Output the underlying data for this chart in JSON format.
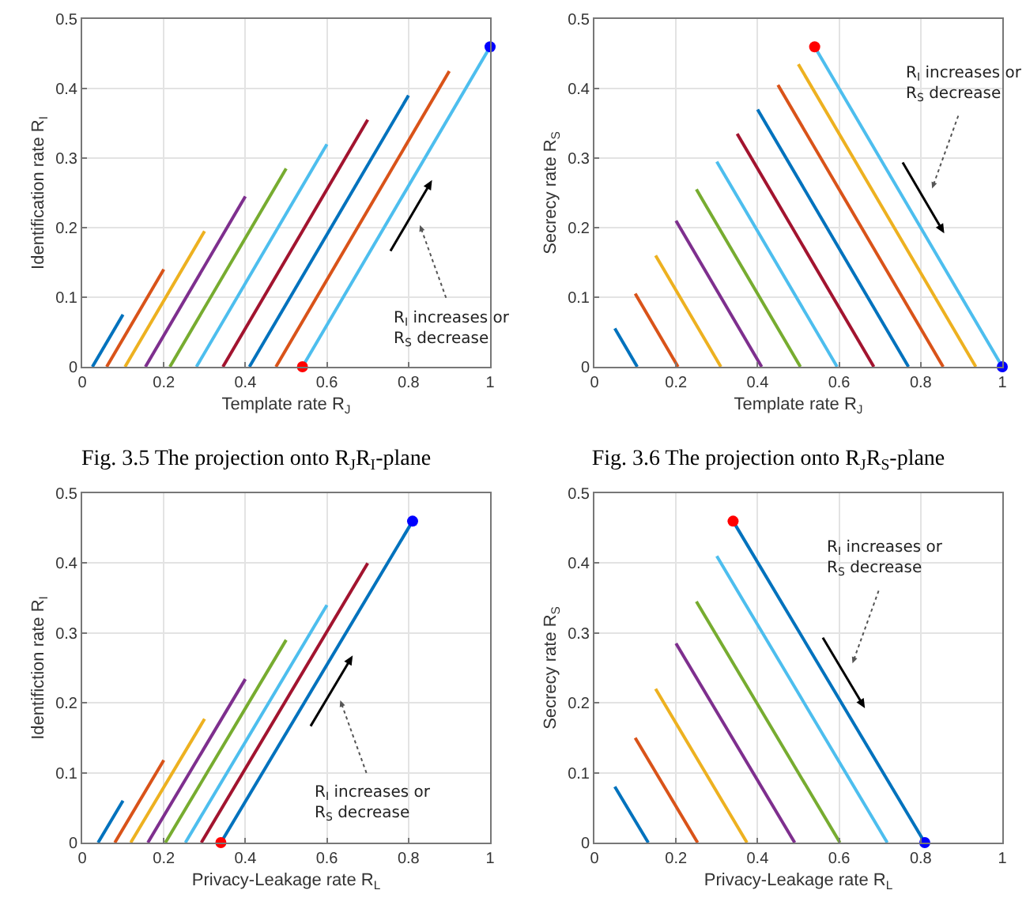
{
  "chart_data": [
    {
      "type": "line",
      "title": "Fig. 3.5 The projection onto R$_{J}$R$_{I}$-plane",
      "xlabel": "Template rate R$_{J}$",
      "ylabel": "Identification rate R$_{I}$",
      "xlim": [
        0,
        1
      ],
      "ylim": [
        0,
        0.5
      ],
      "xticks": [
        0,
        0.2,
        0.4,
        0.6,
        0.8,
        1
      ],
      "yticks": [
        0,
        0.1,
        0.2,
        0.3,
        0.4,
        0.5
      ],
      "grid": true,
      "legend": false,
      "annotations": [
        "R$_{I}$ increases or\nR$_{S}$ decrease"
      ],
      "series": [
        {
          "color": "#0072bd",
          "x": [
            0.025,
            0.1
          ],
          "values": [
            0,
            0.075
          ]
        },
        {
          "color": "#d95319",
          "x": [
            0.06,
            0.2
          ],
          "values": [
            0,
            0.14
          ]
        },
        {
          "color": "#edb120",
          "x": [
            0.105,
            0.3
          ],
          "values": [
            0,
            0.195
          ]
        },
        {
          "color": "#7e2f8e",
          "x": [
            0.155,
            0.4
          ],
          "values": [
            0,
            0.245
          ]
        },
        {
          "color": "#77ac30",
          "x": [
            0.215,
            0.5
          ],
          "values": [
            0,
            0.285
          ]
        },
        {
          "color": "#4dbeee",
          "x": [
            0.28,
            0.6
          ],
          "values": [
            0,
            0.32
          ]
        },
        {
          "color": "#a2142f",
          "x": [
            0.345,
            0.7
          ],
          "values": [
            0,
            0.355
          ]
        },
        {
          "color": "#0072bd",
          "x": [
            0.41,
            0.8
          ],
          "values": [
            0,
            0.39
          ]
        },
        {
          "color": "#d95319",
          "x": [
            0.475,
            0.9
          ],
          "values": [
            0,
            0.425
          ]
        },
        {
          "color": "#4dbeee",
          "x": [
            0.54,
            1
          ],
          "values": [
            0,
            0.46
          ]
        },
        {
          "type": "scatter",
          "color": "#ff0000",
          "x": [
            0.54
          ],
          "values": [
            0
          ]
        },
        {
          "type": "scatter",
          "color": "#0000ff",
          "x": [
            1
          ],
          "values": [
            0.46
          ]
        }
      ]
    },
    {
      "type": "line",
      "title": "Fig. 3.6 The projection onto R$_{J}$R$_{S}$-plane",
      "xlabel": "Template rate R$_{J}$",
      "ylabel": "Secrecy rate R$_{S}$",
      "xlim": [
        0,
        1
      ],
      "ylim": [
        0,
        0.5
      ],
      "xticks": [
        0,
        0.2,
        0.4,
        0.6,
        0.8,
        1
      ],
      "yticks": [
        0,
        0.1,
        0.2,
        0.3,
        0.4,
        0.5
      ],
      "grid": true,
      "legend": false,
      "annotations": [
        "R$_{I}$ increases or\nR$_{S}$ decrease"
      ],
      "series": [
        {
          "color": "#0072bd",
          "x": [
            0.05,
            0.105
          ],
          "values": [
            0.055,
            0
          ]
        },
        {
          "color": "#d95319",
          "x": [
            0.1,
            0.205
          ],
          "values": [
            0.105,
            0
          ]
        },
        {
          "color": "#edb120",
          "x": [
            0.15,
            0.31
          ],
          "values": [
            0.16,
            0
          ]
        },
        {
          "color": "#7e2f8e",
          "x": [
            0.2,
            0.41
          ],
          "values": [
            0.21,
            0
          ]
        },
        {
          "color": "#77ac30",
          "x": [
            0.25,
            0.505
          ],
          "values": [
            0.255,
            0
          ]
        },
        {
          "color": "#4dbeee",
          "x": [
            0.3,
            0.595
          ],
          "values": [
            0.295,
            0
          ]
        },
        {
          "color": "#a2142f",
          "x": [
            0.35,
            0.685
          ],
          "values": [
            0.335,
            0
          ]
        },
        {
          "color": "#0072bd",
          "x": [
            0.4,
            0.77
          ],
          "values": [
            0.37,
            0
          ]
        },
        {
          "color": "#d95319",
          "x": [
            0.45,
            0.855
          ],
          "values": [
            0.405,
            0
          ]
        },
        {
          "color": "#edb120",
          "x": [
            0.5,
            0.935
          ],
          "values": [
            0.435,
            0
          ]
        },
        {
          "color": "#4dbeee",
          "x": [
            0.54,
            1
          ],
          "values": [
            0.46,
            0
          ]
        },
        {
          "type": "scatter",
          "color": "#ff0000",
          "x": [
            0.54
          ],
          "values": [
            0.46
          ]
        },
        {
          "type": "scatter",
          "color": "#0000ff",
          "x": [
            1
          ],
          "values": [
            0
          ]
        }
      ]
    },
    {
      "type": "line",
      "xlabel": "Privacy-Leakage rate R$_{L}$",
      "ylabel": "Identifiction rate R$_{I}$",
      "xlim": [
        0,
        1
      ],
      "ylim": [
        0,
        0.5
      ],
      "xticks": [
        0,
        0.2,
        0.4,
        0.6,
        0.8,
        1
      ],
      "yticks": [
        0,
        0.1,
        0.2,
        0.3,
        0.4,
        0.5
      ],
      "grid": true,
      "legend": false,
      "annotations": [
        "R$_{I}$ increases or\nR$_{S}$ decrease"
      ],
      "series": [
        {
          "color": "#0072bd",
          "x": [
            0.039,
            0.1
          ],
          "values": [
            0,
            0.06
          ]
        },
        {
          "color": "#d95319",
          "x": [
            0.08,
            0.2
          ],
          "values": [
            0,
            0.118
          ]
        },
        {
          "color": "#edb120",
          "x": [
            0.119,
            0.3
          ],
          "values": [
            0,
            0.177
          ]
        },
        {
          "color": "#7e2f8e",
          "x": [
            0.161,
            0.4
          ],
          "values": [
            0,
            0.234
          ]
        },
        {
          "color": "#77ac30",
          "x": [
            0.204,
            0.5
          ],
          "values": [
            0,
            0.29
          ]
        },
        {
          "color": "#4dbeee",
          "x": [
            0.253,
            0.6
          ],
          "values": [
            0,
            0.34
          ]
        },
        {
          "color": "#a2142f",
          "x": [
            0.292,
            0.7
          ],
          "values": [
            0,
            0.4
          ]
        },
        {
          "color": "#0072bd",
          "x": [
            0.34,
            0.81
          ],
          "values": [
            0,
            0.46
          ]
        },
        {
          "type": "scatter",
          "color": "#ff0000",
          "x": [
            0.34
          ],
          "values": [
            0
          ]
        },
        {
          "type": "scatter",
          "color": "#0000ff",
          "x": [
            0.81
          ],
          "values": [
            0.46
          ]
        }
      ]
    },
    {
      "type": "line",
      "xlabel": "Privacy-Leakage rate R$_{L}$",
      "ylabel": "Secrecy rate R$_{S}$",
      "xlim": [
        0,
        1
      ],
      "ylim": [
        0,
        0.5
      ],
      "xticks": [
        0,
        0.2,
        0.4,
        0.6,
        0.8,
        1
      ],
      "yticks": [
        0,
        0.1,
        0.2,
        0.3,
        0.4,
        0.5
      ],
      "grid": true,
      "legend": false,
      "annotations": [
        "R$_{I}$ increases or\nR$_{S}$ decrease"
      ],
      "series": [
        {
          "color": "#0072bd",
          "x": [
            0.05,
            0.132
          ],
          "values": [
            0.08,
            0
          ]
        },
        {
          "color": "#d95319",
          "x": [
            0.1,
            0.253
          ],
          "values": [
            0.15,
            0
          ]
        },
        {
          "color": "#edb120",
          "x": [
            0.15,
            0.374
          ],
          "values": [
            0.22,
            0
          ]
        },
        {
          "color": "#7e2f8e",
          "x": [
            0.2,
            0.491
          ],
          "values": [
            0.285,
            0
          ]
        },
        {
          "color": "#77ac30",
          "x": [
            0.25,
            0.602
          ],
          "values": [
            0.345,
            0
          ]
        },
        {
          "color": "#4dbeee",
          "x": [
            0.3,
            0.718
          ],
          "values": [
            0.41,
            0
          ]
        },
        {
          "color": "#0072bd",
          "x": [
            0.34,
            0.81
          ],
          "values": [
            0.46,
            0
          ]
        },
        {
          "type": "scatter",
          "color": "#ff0000",
          "x": [
            0.34
          ],
          "values": [
            0.46
          ]
        },
        {
          "type": "scatter",
          "color": "#0000ff",
          "x": [
            0.81
          ],
          "values": [
            0
          ]
        }
      ]
    }
  ]
}
